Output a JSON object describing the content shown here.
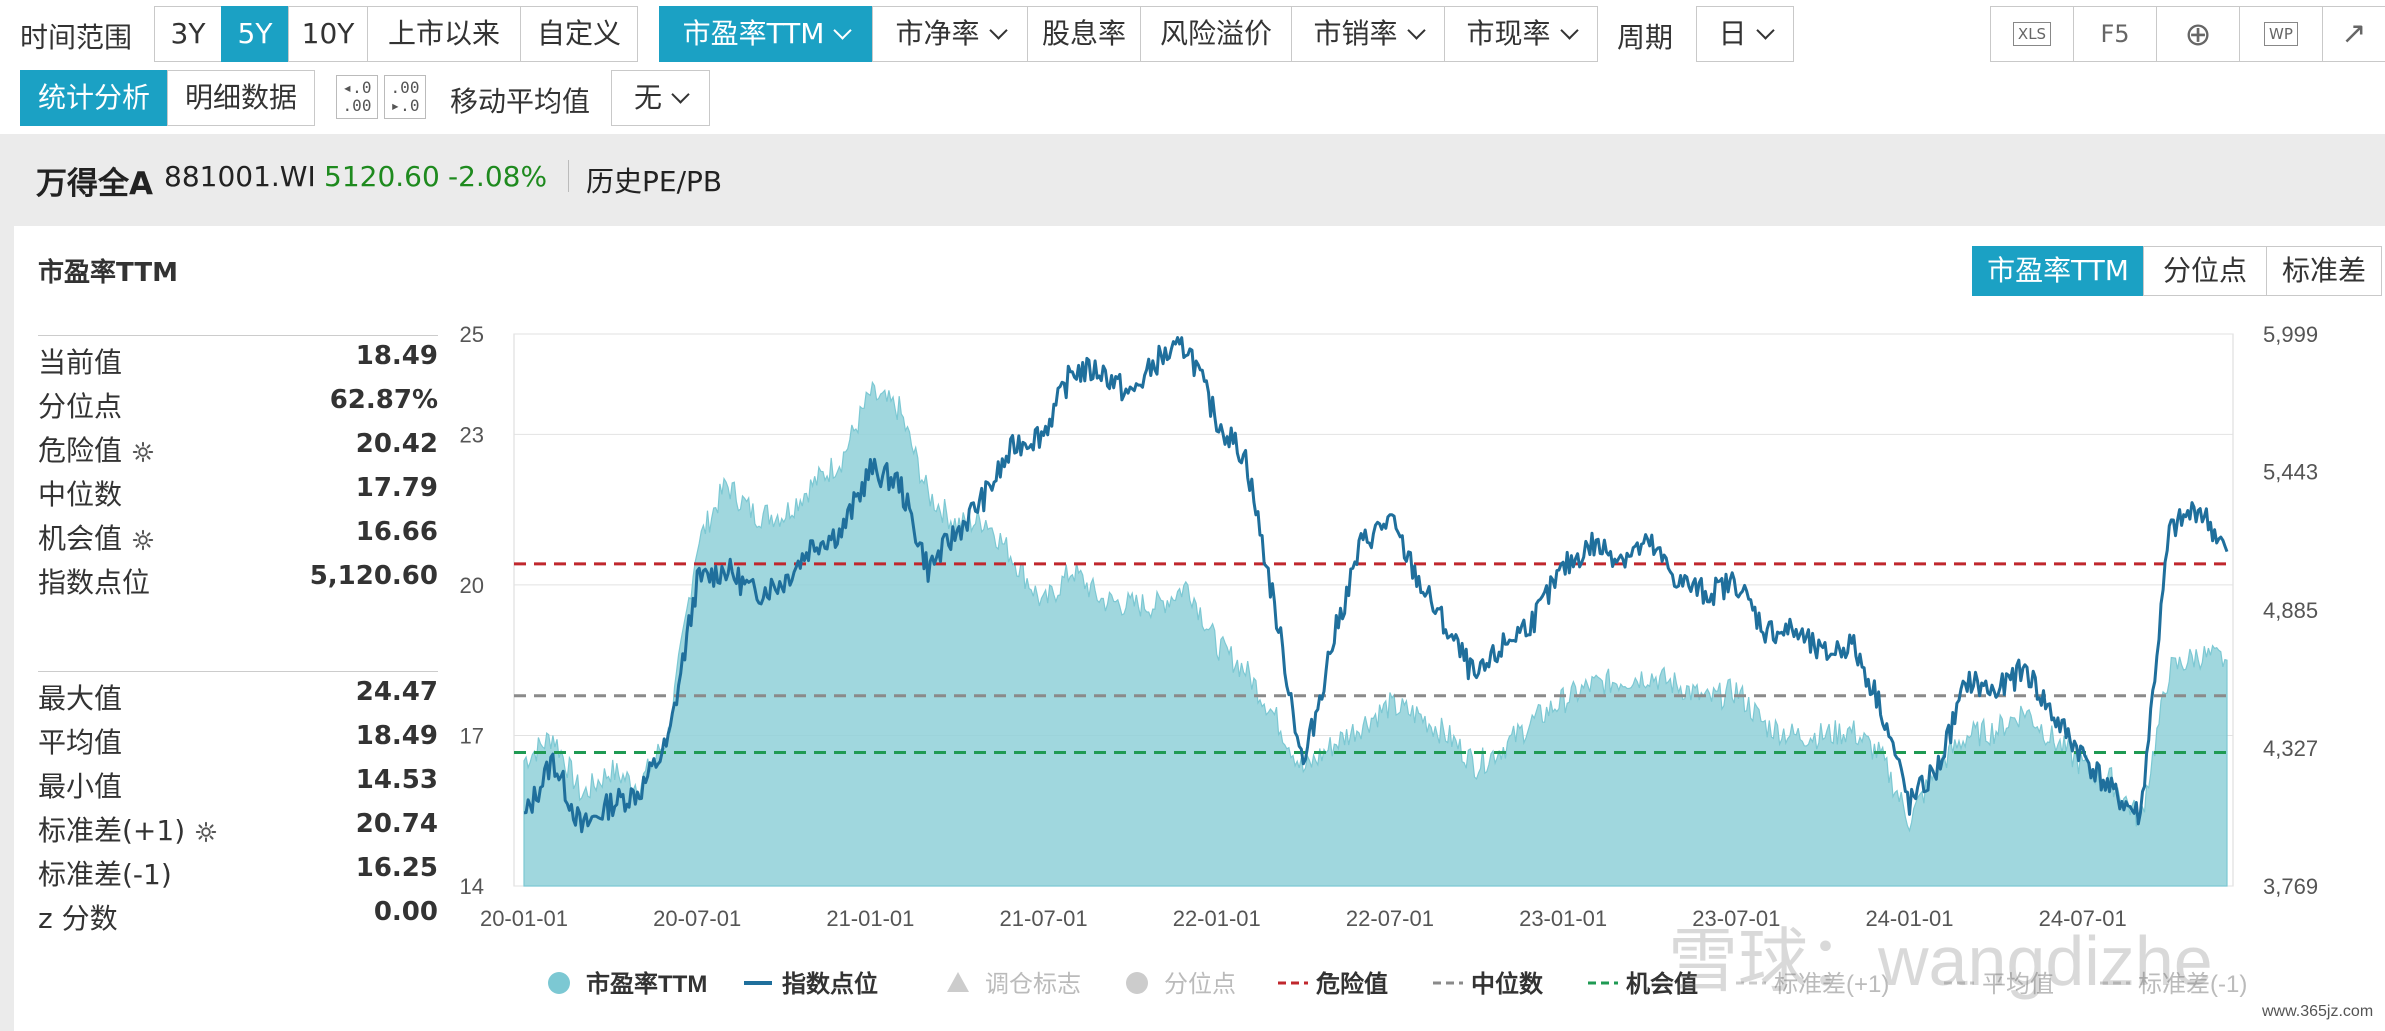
{
  "toolbar": {
    "time_range_label": "时间范围",
    "ranges": [
      "3Y",
      "5Y",
      "10Y",
      "上市以来",
      "自定义"
    ],
    "metrics": [
      {
        "label": "市盈率TTM"
      },
      {
        "label": "市净率"
      },
      {
        "label": "股息率"
      },
      {
        "label": "风险溢价"
      },
      {
        "label": "市销率"
      },
      {
        "label": "市现率"
      }
    ],
    "period_label": "周期",
    "period_value": "日",
    "tools": [
      "XLS",
      "F5",
      "⊕",
      "WP",
      "↗"
    ],
    "view_tabs": [
      "统计分析",
      "明细数据"
    ],
    "ma_label": "移动平均值",
    "ma_value": "无"
  },
  "info": {
    "name": "万得全A",
    "code": "881001.WI",
    "price": "5120.60",
    "change": "-2.08%",
    "history": "历史PE/PB"
  },
  "panel": {
    "title": "市盈率TTM",
    "tabs": [
      "市盈率TTM",
      "分位点",
      "标准差"
    ]
  },
  "stats_top": [
    {
      "label": "当前值",
      "value": "18.49"
    },
    {
      "label": "分位点",
      "value": "62.87%"
    },
    {
      "label": "危险值",
      "value": "20.42",
      "gear": true
    },
    {
      "label": "中位数",
      "value": "17.79"
    },
    {
      "label": "机会值",
      "value": "16.66",
      "gear": true
    },
    {
      "label": "指数点位",
      "value": "5,120.60"
    }
  ],
  "stats_bottom": [
    {
      "label": "最大值",
      "value": "24.47"
    },
    {
      "label": "平均值",
      "value": "18.49"
    },
    {
      "label": "最小值",
      "value": "14.53"
    },
    {
      "label": "标准差(+1)",
      "value": "20.74",
      "gear": true
    },
    {
      "label": "标准差(-1)",
      "value": "16.25"
    },
    {
      "label": "z 分数",
      "value": "0.00"
    }
  ],
  "chart_data": {
    "type": "area",
    "x_ticks": [
      "20-01-01",
      "20-07-01",
      "21-01-01",
      "21-07-01",
      "22-01-01",
      "22-07-01",
      "23-01-01",
      "23-07-01",
      "24-01-01",
      "24-07-01"
    ],
    "left_axis": {
      "ylim": [
        14,
        25
      ],
      "ticks": [
        14,
        17,
        20,
        23,
        25
      ]
    },
    "right_axis": {
      "ylim": [
        3769,
        5999
      ],
      "ticks": [
        "3,769",
        "4,327",
        "4,885",
        "5,443",
        "5,999"
      ]
    },
    "reference_lines": [
      {
        "name": "危险值",
        "value": 20.42,
        "color": "#c0272d"
      },
      {
        "name": "中位数",
        "value": 17.79,
        "color": "#8a8a8a"
      },
      {
        "name": "机会值",
        "value": 16.66,
        "color": "#1f9a53"
      }
    ],
    "series": [
      {
        "name": "市盈率TTM",
        "color": "#8fd0d8",
        "axis": "left",
        "points": [
          [
            "20-01-01",
            16.5
          ],
          [
            "20-02-01",
            17.0
          ],
          [
            "20-03-01",
            15.8
          ],
          [
            "20-04-01",
            16.3
          ],
          [
            "20-05-01",
            16.0
          ],
          [
            "20-06-01",
            17.0
          ],
          [
            "20-07-01",
            20.8
          ],
          [
            "20-08-01",
            22.0
          ],
          [
            "20-09-01",
            21.4
          ],
          [
            "20-10-01",
            21.4
          ],
          [
            "20-11-01",
            22.0
          ],
          [
            "20-12-01",
            22.5
          ],
          [
            "21-01-01",
            23.8
          ],
          [
            "21-02-01",
            23.5
          ],
          [
            "21-03-01",
            21.8
          ],
          [
            "21-04-01",
            21.2
          ],
          [
            "21-05-01",
            21.3
          ],
          [
            "21-06-01",
            20.5
          ],
          [
            "21-07-01",
            19.6
          ],
          [
            "21-08-01",
            20.3
          ],
          [
            "21-09-01",
            19.7
          ],
          [
            "21-10-01",
            19.6
          ],
          [
            "21-11-01",
            19.6
          ],
          [
            "21-12-01",
            20.0
          ],
          [
            "22-01-01",
            18.8
          ],
          [
            "22-02-01",
            18.3
          ],
          [
            "22-03-01",
            17.4
          ],
          [
            "22-04-01",
            16.3
          ],
          [
            "22-05-01",
            16.8
          ],
          [
            "22-06-01",
            17.2
          ],
          [
            "22-07-01",
            17.6
          ],
          [
            "22-08-01",
            17.4
          ],
          [
            "22-09-01",
            17.0
          ],
          [
            "22-10-01",
            16.4
          ],
          [
            "22-11-01",
            16.8
          ],
          [
            "22-12-01",
            17.3
          ],
          [
            "23-01-01",
            17.7
          ],
          [
            "23-02-01",
            18.0
          ],
          [
            "23-03-01",
            18.1
          ],
          [
            "23-04-01",
            18.2
          ],
          [
            "23-05-01",
            18.0
          ],
          [
            "23-06-01",
            17.7
          ],
          [
            "23-07-01",
            17.9
          ],
          [
            "23-08-01",
            17.2
          ],
          [
            "23-09-01",
            17.0
          ],
          [
            "23-10-01",
            17.0
          ],
          [
            "23-11-01",
            17.1
          ],
          [
            "23-12-01",
            16.6
          ],
          [
            "24-01-01",
            15.3
          ],
          [
            "24-02-01",
            16.4
          ],
          [
            "24-03-01",
            17.0
          ],
          [
            "24-04-01",
            17.1
          ],
          [
            "24-05-01",
            17.5
          ],
          [
            "24-06-01",
            16.9
          ],
          [
            "24-07-01",
            16.4
          ],
          [
            "24-08-01",
            16.1
          ],
          [
            "24-09-01",
            15.3
          ],
          [
            "24-10-01",
            18.3
          ],
          [
            "24-11-01",
            18.6
          ],
          [
            "24-12-01",
            18.5
          ]
        ]
      },
      {
        "name": "指数点位",
        "color": "#1f6f9c",
        "axis": "right",
        "points": [
          [
            "20-01-01",
            4040
          ],
          [
            "20-02-01",
            4280
          ],
          [
            "20-03-01",
            4000
          ],
          [
            "20-04-01",
            4100
          ],
          [
            "20-05-01",
            4150
          ],
          [
            "20-06-01",
            4350
          ],
          [
            "20-07-01",
            5000
          ],
          [
            "20-08-01",
            5050
          ],
          [
            "20-09-01",
            4950
          ],
          [
            "20-10-01",
            5000
          ],
          [
            "20-11-01",
            5150
          ],
          [
            "20-12-01",
            5200
          ],
          [
            "21-01-01",
            5450
          ],
          [
            "21-02-01",
            5400
          ],
          [
            "21-03-01",
            5050
          ],
          [
            "21-04-01",
            5200
          ],
          [
            "21-05-01",
            5350
          ],
          [
            "21-06-01",
            5550
          ],
          [
            "21-07-01",
            5600
          ],
          [
            "21-08-01",
            5850
          ],
          [
            "21-09-01",
            5850
          ],
          [
            "21-10-01",
            5750
          ],
          [
            "21-11-01",
            5900
          ],
          [
            "21-12-01",
            5950
          ],
          [
            "22-01-01",
            5650
          ],
          [
            "22-02-01",
            5500
          ],
          [
            "22-03-01",
            4900
          ],
          [
            "22-04-01",
            4250
          ],
          [
            "22-05-01",
            4750
          ],
          [
            "22-06-01",
            5150
          ],
          [
            "22-07-01",
            5250
          ],
          [
            "22-08-01",
            5000
          ],
          [
            "22-09-01",
            4800
          ],
          [
            "22-10-01",
            4600
          ],
          [
            "22-11-01",
            4750
          ],
          [
            "22-12-01",
            4850
          ],
          [
            "23-01-01",
            5050
          ],
          [
            "23-02-01",
            5150
          ],
          [
            "23-03-01",
            5100
          ],
          [
            "23-04-01",
            5150
          ],
          [
            "23-05-01",
            5000
          ],
          [
            "23-06-01",
            4950
          ],
          [
            "23-07-01",
            5000
          ],
          [
            "23-08-01",
            4800
          ],
          [
            "23-09-01",
            4800
          ],
          [
            "23-10-01",
            4700
          ],
          [
            "23-11-01",
            4750
          ],
          [
            "23-12-01",
            4500
          ],
          [
            "24-01-01",
            4100
          ],
          [
            "24-02-01",
            4250
          ],
          [
            "24-03-01",
            4600
          ],
          [
            "24-04-01",
            4550
          ],
          [
            "24-05-01",
            4650
          ],
          [
            "24-06-01",
            4450
          ],
          [
            "24-07-01",
            4300
          ],
          [
            "24-08-01",
            4150
          ],
          [
            "24-09-01",
            4050
          ],
          [
            "24-10-01",
            5200
          ],
          [
            "24-11-01",
            5300
          ],
          [
            "24-12-01",
            5120
          ]
        ]
      }
    ],
    "legend": [
      {
        "label": "市盈率TTM",
        "marker": "dot",
        "color": "#7cc8d3",
        "active": true
      },
      {
        "label": "指数点位",
        "marker": "line",
        "color": "#1f6f9c",
        "active": true
      },
      {
        "label": "调仓标志",
        "marker": "triangle",
        "color": "#cccccc",
        "active": false
      },
      {
        "label": "分位点",
        "marker": "dot",
        "color": "#cccccc",
        "active": false
      },
      {
        "label": "危险值",
        "marker": "dash",
        "color": "#c0272d",
        "active": true
      },
      {
        "label": "中位数",
        "marker": "dash",
        "color": "#8a8a8a",
        "active": true
      },
      {
        "label": "机会值",
        "marker": "dash",
        "color": "#1f9a53",
        "active": true
      },
      {
        "label": "标准差(+1)",
        "marker": "dash",
        "color": "#cccccc",
        "active": false
      },
      {
        "label": "平均值",
        "marker": "dash",
        "color": "#cccccc",
        "active": false
      },
      {
        "label": "标准差(-1)",
        "marker": "dash",
        "color": "#cccccc",
        "active": false
      }
    ]
  },
  "watermark": {
    "text": "雪球：wangdizhe",
    "small": "www.365jz.com"
  }
}
